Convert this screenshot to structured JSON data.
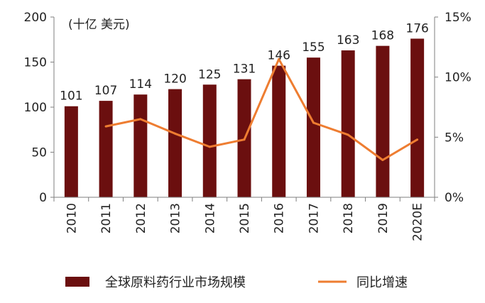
{
  "chart_data": {
    "type": "bar",
    "unit_label": "(十亿 美元)",
    "categories": [
      "2010",
      "2011",
      "2012",
      "2013",
      "2014",
      "2015",
      "2016",
      "2017",
      "2018",
      "2019",
      "2020E"
    ],
    "series": [
      {
        "name": "全球原料药行业市场规模",
        "type": "bar",
        "axis": "left",
        "color": "#6b0f0f",
        "values": [
          101,
          107,
          114,
          120,
          125,
          131,
          146,
          155,
          163,
          168,
          176
        ],
        "value_labels": [
          "101",
          "107",
          "114",
          "120",
          "125",
          "131",
          "146",
          "155",
          "163",
          "168",
          "176"
        ]
      },
      {
        "name": "同比增速",
        "type": "line",
        "axis": "right",
        "color": "#ee7d31",
        "values": [
          null,
          5.9,
          6.5,
          5.3,
          4.2,
          4.8,
          11.5,
          6.2,
          5.2,
          3.1,
          4.8
        ]
      }
    ],
    "y_left": {
      "min": 0,
      "max": 200,
      "ticks": [
        0,
        50,
        100,
        150,
        200
      ],
      "tick_labels": [
        "0",
        "50",
        "100",
        "150",
        "200"
      ]
    },
    "y_right": {
      "min": 0,
      "max": 15,
      "ticks": [
        0,
        5,
        10,
        15
      ],
      "tick_labels": [
        "0%",
        "5%",
        "10%",
        "15%"
      ]
    },
    "grid": false,
    "legend_position": "bottom"
  }
}
